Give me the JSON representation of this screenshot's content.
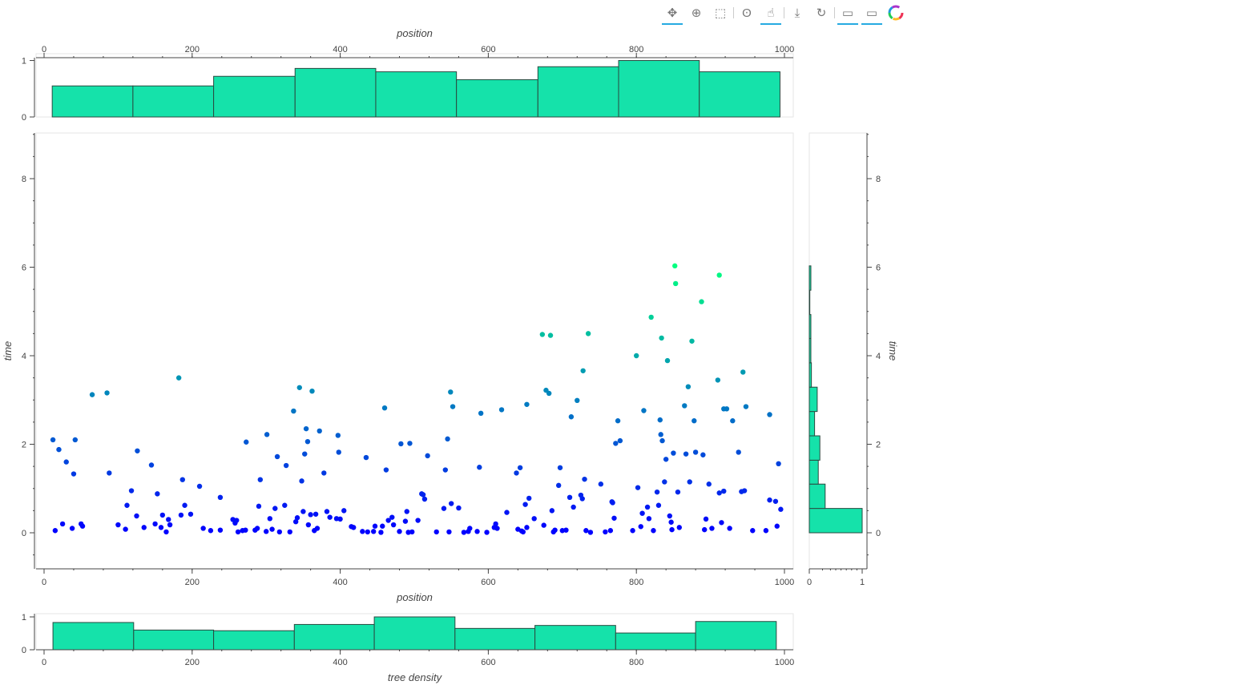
{
  "toolbar": {
    "tools": [
      {
        "name": "pan-tool",
        "icon": "pan-icon",
        "glyph": "✥",
        "active": true
      },
      {
        "name": "wheel-zoom-tool",
        "icon": "wheel-zoom-icon",
        "glyph": "⊕",
        "active": false
      },
      {
        "name": "box-zoom-tool",
        "icon": "box-zoom-icon",
        "glyph": "⬚",
        "active": false
      },
      {
        "name": "lasso-tool",
        "icon": "lasso-icon",
        "glyph": "ʘ",
        "active": false
      },
      {
        "name": "tap-tool",
        "icon": "tap-icon",
        "glyph": "☝",
        "active": true
      },
      {
        "name": "save-tool",
        "icon": "save-icon",
        "glyph": "⤓",
        "active": false
      },
      {
        "name": "reset-tool",
        "icon": "reset-icon",
        "glyph": "↻",
        "active": false
      },
      {
        "name": "hover-tool-1",
        "icon": "hover-icon",
        "glyph": "▭",
        "active": true
      },
      {
        "name": "hover-tool-2",
        "icon": "hover-icon",
        "glyph": "▭",
        "active": true
      }
    ],
    "logo": "bokeh-logo-icon"
  },
  "colors": {
    "hist_fill": "#15e2aa",
    "hist_line": "#2a4a40",
    "axis": "#444444",
    "scatter_low": "#0000ff",
    "scatter_high": "#00ff80"
  },
  "chart_data": [
    {
      "id": "top-histogram",
      "type": "bar",
      "xlabel": "position",
      "xlim": [
        0,
        1000
      ],
      "ylim": [
        0,
        1.05
      ],
      "x_ticks": [
        0,
        200,
        400,
        600,
        800,
        1000
      ],
      "y_ticks": [
        0,
        1
      ],
      "bins": [
        [
          11,
          120
        ],
        [
          120,
          229
        ],
        [
          229,
          339
        ],
        [
          339,
          448
        ],
        [
          448,
          557
        ],
        [
          557,
          667
        ],
        [
          667,
          776
        ],
        [
          776,
          885
        ],
        [
          885,
          994
        ]
      ],
      "values": [
        0.55,
        0.55,
        0.72,
        0.86,
        0.8,
        0.66,
        0.89,
        1.0,
        0.8
      ]
    },
    {
      "id": "main-scatter",
      "type": "scatter",
      "xlabel": "position",
      "ylabel": "time",
      "xlim": [
        -8,
        1010
      ],
      "ylim": [
        -0.8,
        9.1
      ],
      "x_ticks": [
        0,
        200,
        400,
        600,
        800,
        1000
      ],
      "y_ticks": [
        0,
        2,
        4,
        6,
        8
      ],
      "color_scale": "time: blue (0) to green (6)",
      "points": [
        [
          12,
          2.1
        ],
        [
          15,
          0.05
        ],
        [
          20,
          1.88
        ],
        [
          25,
          0.2
        ],
        [
          30,
          1.6
        ],
        [
          38,
          0.1
        ],
        [
          40,
          1.33
        ],
        [
          42,
          2.1
        ],
        [
          50,
          0.2
        ],
        [
          52,
          0.15
        ],
        [
          65,
          3.12
        ],
        [
          85,
          3.16
        ],
        [
          88,
          1.35
        ],
        [
          100,
          0.18
        ],
        [
          110,
          0.08
        ],
        [
          112,
          0.62
        ],
        [
          118,
          0.95
        ],
        [
          125,
          0.38
        ],
        [
          126,
          1.85
        ],
        [
          135,
          0.12
        ],
        [
          145,
          1.53
        ],
        [
          150,
          0.2
        ],
        [
          153,
          0.88
        ],
        [
          158,
          0.12
        ],
        [
          160,
          0.4
        ],
        [
          165,
          0.02
        ],
        [
          168,
          0.3
        ],
        [
          170,
          0.18
        ],
        [
          182,
          3.5
        ],
        [
          185,
          0.4
        ],
        [
          187,
          1.2
        ],
        [
          190,
          0.62
        ],
        [
          198,
          0.42
        ],
        [
          210,
          1.05
        ],
        [
          215,
          0.1
        ],
        [
          225,
          0.05
        ],
        [
          238,
          0.8
        ],
        [
          238,
          0.06
        ],
        [
          255,
          0.3
        ],
        [
          258,
          0.22
        ],
        [
          260,
          0.28
        ],
        [
          262,
          0.02
        ],
        [
          268,
          0.05
        ],
        [
          272,
          0.06
        ],
        [
          273,
          2.05
        ],
        [
          285,
          0.06
        ],
        [
          288,
          0.1
        ],
        [
          290,
          0.6
        ],
        [
          292,
          1.2
        ],
        [
          300,
          0.03
        ],
        [
          301,
          2.22
        ],
        [
          305,
          0.32
        ],
        [
          308,
          0.08
        ],
        [
          312,
          0.55
        ],
        [
          315,
          1.72
        ],
        [
          318,
          0.02
        ],
        [
          325,
          0.62
        ],
        [
          327,
          1.52
        ],
        [
          332,
          0.02
        ],
        [
          337,
          2.75
        ],
        [
          340,
          0.25
        ],
        [
          342,
          0.34
        ],
        [
          345,
          3.28
        ],
        [
          348,
          1.17
        ],
        [
          350,
          0.48
        ],
        [
          352,
          1.78
        ],
        [
          354,
          2.35
        ],
        [
          356,
          2.06
        ],
        [
          357,
          0.18
        ],
        [
          360,
          0.41
        ],
        [
          362,
          3.2
        ],
        [
          365,
          0.05
        ],
        [
          367,
          0.42
        ],
        [
          369,
          0.1
        ],
        [
          372,
          2.3
        ],
        [
          378,
          1.35
        ],
        [
          382,
          0.48
        ],
        [
          386,
          0.35
        ],
        [
          395,
          0.32
        ],
        [
          397,
          2.2
        ],
        [
          398,
          1.82
        ],
        [
          400,
          0.31
        ],
        [
          405,
          0.5
        ],
        [
          415,
          0.14
        ],
        [
          418,
          0.12
        ],
        [
          430,
          0.03
        ],
        [
          435,
          1.7
        ],
        [
          437,
          0.02
        ],
        [
          445,
          0.03
        ],
        [
          447,
          0.15
        ],
        [
          455,
          0.01
        ],
        [
          457,
          0.15
        ],
        [
          460,
          2.82
        ],
        [
          462,
          1.42
        ],
        [
          465,
          0.28
        ],
        [
          470,
          0.35
        ],
        [
          472,
          0.18
        ],
        [
          480,
          0.03
        ],
        [
          482,
          2.01
        ],
        [
          488,
          0.26
        ],
        [
          490,
          0.48
        ],
        [
          492,
          0.01
        ],
        [
          494,
          2.02
        ],
        [
          497,
          0.02
        ],
        [
          505,
          0.28
        ],
        [
          510,
          0.88
        ],
        [
          512,
          0.86
        ],
        [
          514,
          0.76
        ],
        [
          518,
          1.74
        ],
        [
          530,
          0.02
        ],
        [
          540,
          0.55
        ],
        [
          542,
          1.42
        ],
        [
          545,
          2.12
        ],
        [
          547,
          0.02
        ],
        [
          549,
          3.18
        ],
        [
          550,
          0.66
        ],
        [
          552,
          2.85
        ],
        [
          560,
          0.56
        ],
        [
          567,
          0.01
        ],
        [
          573,
          0.03
        ],
        [
          575,
          0.1
        ],
        [
          585,
          0.03
        ],
        [
          588,
          1.48
        ],
        [
          590,
          2.7
        ],
        [
          598,
          0.01
        ],
        [
          608,
          0.12
        ],
        [
          610,
          0.2
        ],
        [
          612,
          0.1
        ],
        [
          618,
          2.78
        ],
        [
          625,
          0.46
        ],
        [
          638,
          1.35
        ],
        [
          640,
          0.08
        ],
        [
          643,
          1.47
        ],
        [
          645,
          0.04
        ],
        [
          647,
          0.02
        ],
        [
          650,
          0.64
        ],
        [
          652,
          2.9
        ],
        [
          652,
          0.12
        ],
        [
          655,
          0.78
        ],
        [
          662,
          0.32
        ],
        [
          673,
          4.48
        ],
        [
          675,
          0.17
        ],
        [
          678,
          3.22
        ],
        [
          682,
          3.15
        ],
        [
          684,
          4.46
        ],
        [
          686,
          0.5
        ],
        [
          688,
          0.02
        ],
        [
          690,
          0.06
        ],
        [
          695,
          1.07
        ],
        [
          697,
          1.47
        ],
        [
          700,
          0.05
        ],
        [
          705,
          0.06
        ],
        [
          710,
          0.8
        ],
        [
          712,
          2.62
        ],
        [
          715,
          0.58
        ],
        [
          720,
          2.99
        ],
        [
          725,
          0.85
        ],
        [
          727,
          0.77
        ],
        [
          728,
          3.66
        ],
        [
          730,
          1.21
        ],
        [
          732,
          0.05
        ],
        [
          735,
          4.5
        ],
        [
          738,
          0.01
        ],
        [
          752,
          1.1
        ],
        [
          758,
          0.02
        ],
        [
          765,
          0.05
        ],
        [
          767,
          0.7
        ],
        [
          768,
          0.68
        ],
        [
          770,
          0.33
        ],
        [
          772,
          2.02
        ],
        [
          775,
          2.53
        ],
        [
          778,
          2.08
        ],
        [
          795,
          0.05
        ],
        [
          800,
          4.0
        ],
        [
          802,
          1.02
        ],
        [
          806,
          0.14
        ],
        [
          808,
          0.44
        ],
        [
          810,
          2.76
        ],
        [
          815,
          0.58
        ],
        [
          817,
          0.32
        ],
        [
          820,
          4.87
        ],
        [
          823,
          0.05
        ],
        [
          828,
          0.92
        ],
        [
          830,
          0.62
        ],
        [
          832,
          2.55
        ],
        [
          833,
          2.22
        ],
        [
          834,
          4.4
        ],
        [
          835,
          2.08
        ],
        [
          838,
          1.15
        ],
        [
          840,
          1.66
        ],
        [
          842,
          3.89
        ],
        [
          845,
          0.38
        ],
        [
          847,
          0.24
        ],
        [
          848,
          0.07
        ],
        [
          850,
          1.8
        ],
        [
          852,
          6.03
        ],
        [
          853,
          5.63
        ],
        [
          856,
          0.92
        ],
        [
          858,
          0.12
        ],
        [
          865,
          2.87
        ],
        [
          867,
          1.78
        ],
        [
          870,
          3.3
        ],
        [
          872,
          1.15
        ],
        [
          875,
          4.33
        ],
        [
          878,
          2.53
        ],
        [
          880,
          1.82
        ],
        [
          888,
          5.22
        ],
        [
          890,
          1.76
        ],
        [
          892,
          0.07
        ],
        [
          894,
          0.31
        ],
        [
          898,
          1.1
        ],
        [
          902,
          0.1
        ],
        [
          910,
          3.45
        ],
        [
          912,
          5.82
        ],
        [
          912,
          0.9
        ],
        [
          915,
          0.23
        ],
        [
          918,
          2.8
        ],
        [
          918,
          0.94
        ],
        [
          922,
          2.8
        ],
        [
          926,
          0.1
        ],
        [
          930,
          2.53
        ],
        [
          938,
          1.82
        ],
        [
          942,
          0.93
        ],
        [
          944,
          3.63
        ],
        [
          946,
          0.95
        ],
        [
          948,
          2.85
        ],
        [
          957,
          0.05
        ],
        [
          975,
          0.05
        ],
        [
          980,
          2.67
        ],
        [
          980,
          0.74
        ],
        [
          988,
          0.71
        ],
        [
          990,
          0.15
        ],
        [
          992,
          1.56
        ],
        [
          995,
          0.53
        ]
      ]
    },
    {
      "id": "right-histogram",
      "type": "bar",
      "orientation": "horizontal",
      "ylabel": "time",
      "xlim": [
        0,
        1.0
      ],
      "ylim": [
        -0.8,
        9.1
      ],
      "x_ticks": [
        0,
        1
      ],
      "y_ticks": [
        0,
        2,
        4,
        6,
        8
      ],
      "bins": [
        [
          0,
          0.55
        ],
        [
          0.55,
          1.1
        ],
        [
          1.1,
          1.64
        ],
        [
          1.64,
          2.19
        ],
        [
          2.19,
          2.74
        ],
        [
          2.74,
          3.29
        ],
        [
          3.29,
          3.84
        ],
        [
          3.84,
          4.39
        ],
        [
          4.39,
          4.93
        ],
        [
          4.93,
          5.48
        ],
        [
          5.48,
          6.03
        ]
      ],
      "values": [
        1.0,
        0.3,
        0.17,
        0.2,
        0.1,
        0.15,
        0.04,
        0.03,
        0.03,
        0.01,
        0.03
      ]
    },
    {
      "id": "bottom-histogram",
      "type": "bar",
      "xlabel": "tree density",
      "xlim": [
        -14,
        1010
      ],
      "ylim": [
        0,
        1.05
      ],
      "x_ticks": [
        0,
        200,
        400,
        600,
        800,
        1000
      ],
      "y_ticks": [
        0,
        1
      ],
      "bins": [
        [
          12,
          121
        ],
        [
          121,
          229
        ],
        [
          229,
          338
        ],
        [
          338,
          446
        ],
        [
          446,
          555
        ],
        [
          555,
          663
        ],
        [
          663,
          772
        ],
        [
          772,
          880
        ],
        [
          880,
          989
        ]
      ],
      "values": [
        0.83,
        0.6,
        0.58,
        0.77,
        1.0,
        0.65,
        0.74,
        0.51,
        0.86
      ]
    }
  ]
}
